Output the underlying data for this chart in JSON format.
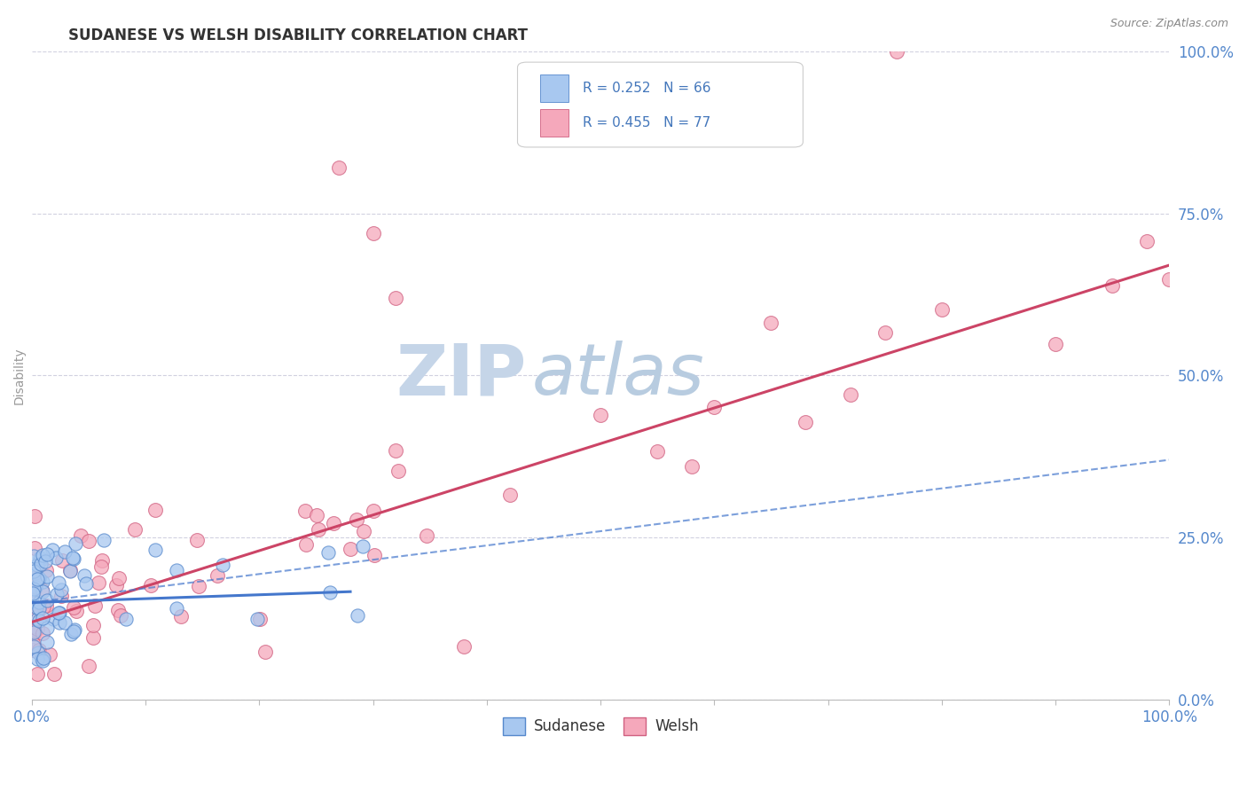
{
  "title": "SUDANESE VS WELSH DISABILITY CORRELATION CHART",
  "source": "Source: ZipAtlas.com",
  "ylabel": "Disability",
  "xlim": [
    0,
    1
  ],
  "ylim": [
    0,
    1
  ],
  "xtick_positions": [
    0.0,
    0.1,
    0.2,
    0.3,
    0.4,
    0.5,
    0.6,
    0.7,
    0.8,
    0.9,
    1.0
  ],
  "yticks_right": [
    0.0,
    0.25,
    0.5,
    0.75,
    1.0
  ],
  "sudanese_R": 0.252,
  "sudanese_N": 66,
  "welsh_R": 0.455,
  "welsh_N": 77,
  "sudanese_color": "#A8C8F0",
  "sudanese_edge": "#5588CC",
  "welsh_color": "#F5A8BB",
  "welsh_edge": "#D06080",
  "sudanese_line_color": "#4477CC",
  "welsh_line_color": "#CC4466",
  "background_color": "#FFFFFF",
  "grid_color": "#CCCCDD",
  "watermark_zip_color": "#C5D5E8",
  "watermark_atlas_color": "#B8CCE0",
  "title_color": "#333333",
  "axis_label_color": "#5588CC",
  "legend_text_color": "#4477BB",
  "welsh_line_intercept": 0.12,
  "welsh_line_slope": 0.55,
  "sudanese_line_intercept": 0.15,
  "sudanese_line_slope": 0.06,
  "sudanese_dash_intercept": 0.15,
  "sudanese_dash_slope": 0.22
}
